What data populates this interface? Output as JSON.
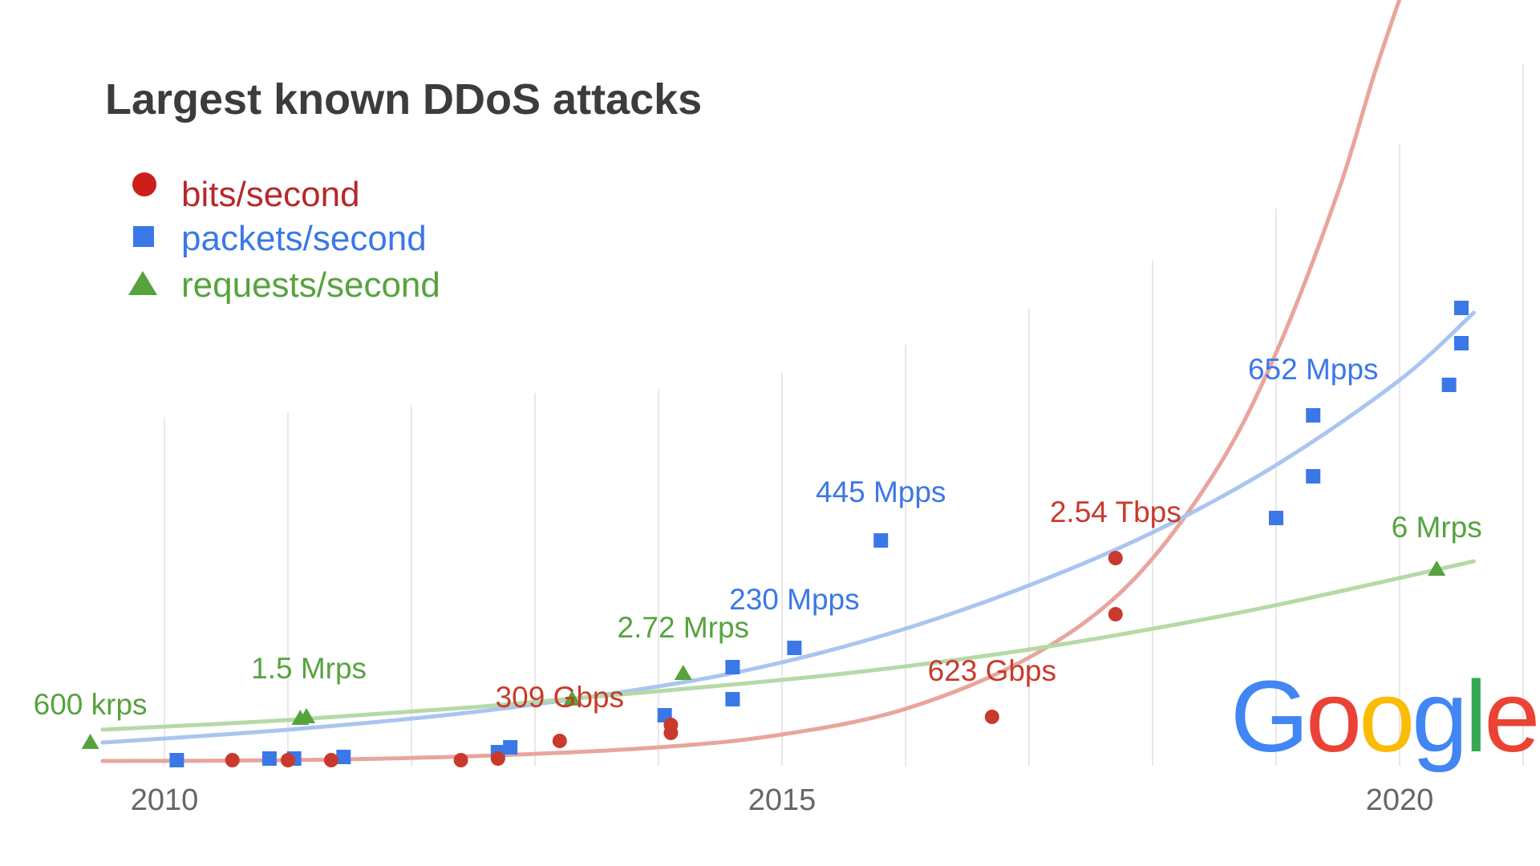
{
  "chart_data": {
    "type": "scatter",
    "title": "Largest known DDoS attacks",
    "xlabel": "",
    "ylabel": "",
    "x_ticks": [
      "2010",
      "2015",
      "2020"
    ],
    "xlim": [
      2009.3,
      2020.7
    ],
    "grid": "vertical",
    "legend_position": "top-left",
    "colors": {
      "bits": "#c93a2c",
      "packets": "#3b78e7",
      "requests": "#56a33e",
      "grid": "#e0e0e0",
      "title": "#3c3c3c",
      "tick": "#666666"
    },
    "series": [
      {
        "key": "bits",
        "name": "bits/second",
        "marker": "circle",
        "points": [
          {
            "x": 2010.55,
            "y": 0.01
          },
          {
            "x": 2011.0,
            "y": 0.01
          },
          {
            "x": 2011.35,
            "y": 0.01
          },
          {
            "x": 2012.4,
            "y": 0.01
          },
          {
            "x": 2012.7,
            "y": 0.02
          },
          {
            "x": 2013.2,
            "y": 0.13
          },
          {
            "x": 2014.1,
            "y": 0.18
          },
          {
            "x": 2014.1,
            "y": 0.23
          },
          {
            "x": 2016.7,
            "y": 0.28
          },
          {
            "x": 2017.7,
            "y": 0.92
          },
          {
            "x": 2017.7,
            "y": 1.27
          }
        ],
        "trend": [
          {
            "x": 2009.5,
            "y": 0.005
          },
          {
            "x": 2011.0,
            "y": 0.01
          },
          {
            "x": 2012.5,
            "y": 0.035
          },
          {
            "x": 2014.0,
            "y": 0.09
          },
          {
            "x": 2015.0,
            "y": 0.17
          },
          {
            "x": 2016.0,
            "y": 0.33
          },
          {
            "x": 2017.0,
            "y": 0.65
          },
          {
            "x": 2017.8,
            "y": 1.1
          },
          {
            "x": 2018.5,
            "y": 1.8
          },
          {
            "x": 2019.0,
            "y": 2.55
          },
          {
            "x": 2019.5,
            "y": 3.55
          },
          {
            "x": 2019.8,
            "y": 4.3
          },
          {
            "x": 2020.1,
            "y": 4.98
          }
        ]
      },
      {
        "key": "packets",
        "name": "packets/second",
        "marker": "square",
        "points": [
          {
            "x": 2010.1,
            "y": 0.01
          },
          {
            "x": 2010.85,
            "y": 0.02
          },
          {
            "x": 2011.05,
            "y": 0.02
          },
          {
            "x": 2011.45,
            "y": 0.03
          },
          {
            "x": 2012.7,
            "y": 0.06
          },
          {
            "x": 2012.8,
            "y": 0.09
          },
          {
            "x": 2014.05,
            "y": 0.29
          },
          {
            "x": 2014.6,
            "y": 0.39
          },
          {
            "x": 2014.6,
            "y": 0.59
          },
          {
            "x": 2015.1,
            "y": 0.71
          },
          {
            "x": 2015.8,
            "y": 1.38
          },
          {
            "x": 2019.0,
            "y": 1.52
          },
          {
            "x": 2019.3,
            "y": 1.78
          },
          {
            "x": 2019.3,
            "y": 2.16
          },
          {
            "x": 2020.4,
            "y": 2.35
          },
          {
            "x": 2020.5,
            "y": 2.61
          },
          {
            "x": 2020.5,
            "y": 2.83
          }
        ],
        "trend": [
          {
            "x": 2009.5,
            "y": 0.12
          },
          {
            "x": 2011.0,
            "y": 0.2
          },
          {
            "x": 2012.5,
            "y": 0.31
          },
          {
            "x": 2014.0,
            "y": 0.47
          },
          {
            "x": 2015.0,
            "y": 0.62
          },
          {
            "x": 2016.0,
            "y": 0.83
          },
          {
            "x": 2017.0,
            "y": 1.1
          },
          {
            "x": 2018.0,
            "y": 1.43
          },
          {
            "x": 2019.0,
            "y": 1.85
          },
          {
            "x": 2020.0,
            "y": 2.38
          },
          {
            "x": 2020.6,
            "y": 2.8
          }
        ]
      },
      {
        "key": "requests",
        "name": "requests/second",
        "marker": "triangle",
        "points": [
          {
            "x": 2009.4,
            "y": 0.12
          },
          {
            "x": 2011.1,
            "y": 0.27
          },
          {
            "x": 2011.15,
            "y": 0.28
          },
          {
            "x": 2013.3,
            "y": 0.39
          },
          {
            "x": 2014.2,
            "y": 0.55
          },
          {
            "x": 2020.3,
            "y": 1.2
          }
        ],
        "trend": [
          {
            "x": 2009.5,
            "y": 0.2
          },
          {
            "x": 2011.0,
            "y": 0.26
          },
          {
            "x": 2012.5,
            "y": 0.34
          },
          {
            "x": 2014.0,
            "y": 0.44
          },
          {
            "x": 2015.5,
            "y": 0.55
          },
          {
            "x": 2017.0,
            "y": 0.7
          },
          {
            "x": 2018.5,
            "y": 0.9
          },
          {
            "x": 2019.5,
            "y": 1.06
          },
          {
            "x": 2020.6,
            "y": 1.25
          }
        ]
      }
    ],
    "annotations": [
      {
        "text": "600 krps",
        "series": "requests",
        "x": 2009.4,
        "y": 0.12
      },
      {
        "text": "1.5 Mrps",
        "series": "requests",
        "x": 2011.15,
        "y": 0.28
      },
      {
        "text": "309 Gbps",
        "series": "bits",
        "x": 2013.2,
        "y": 0.13
      },
      {
        "text": "2.72 Mrps",
        "series": "requests",
        "x": 2014.2,
        "y": 0.55
      },
      {
        "text": "230 Mpps",
        "series": "packets",
        "x": 2015.1,
        "y": 0.71
      },
      {
        "text": "445 Mpps",
        "series": "packets",
        "x": 2015.8,
        "y": 1.38
      },
      {
        "text": "623 Gbps",
        "series": "bits",
        "x": 2016.7,
        "y": 0.28
      },
      {
        "text": "2.54 Tbps",
        "series": "bits",
        "x": 2017.7,
        "y": 1.27
      },
      {
        "text": "652 Mpps",
        "series": "packets",
        "x": 2019.3,
        "y": 2.16
      },
      {
        "text": "6 Mrps",
        "series": "requests",
        "x": 2020.3,
        "y": 1.2
      }
    ]
  },
  "logo": {
    "text": "Google",
    "icon": "google-logo",
    "letter_colors": [
      "#4285f4",
      "#ea4335",
      "#fbbc05",
      "#4285f4",
      "#34a853",
      "#ea4335"
    ]
  }
}
